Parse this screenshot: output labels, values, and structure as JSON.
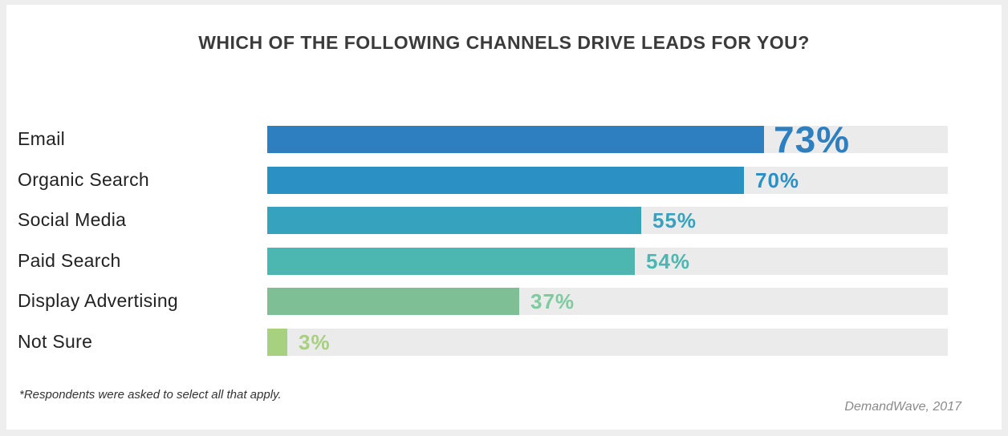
{
  "chart_data": {
    "type": "bar",
    "orientation": "horizontal",
    "title": "WHICH OF THE FOLLOWING CHANNELS DRIVE LEADS FOR YOU?",
    "categories": [
      "Email",
      "Organic Search",
      "Social Media",
      "Paid Search",
      "Display Advertising",
      "Not Sure"
    ],
    "values": [
      73,
      70,
      55,
      54,
      37,
      3
    ],
    "value_labels": [
      "73%",
      "70%",
      "55%",
      "54%",
      "37%",
      "3%"
    ],
    "xlim": [
      0,
      100
    ],
    "grid": false,
    "bar_colors": [
      "#2e7fc0",
      "#2b91c4",
      "#36a2bd",
      "#4bb7b0",
      "#7fbf95",
      "#a7d07f"
    ],
    "label_colors": [
      "#2e7fc0",
      "#2b91c4",
      "#36a2bd",
      "#4bb7b0",
      "#7ecb9f",
      "#a7d07f"
    ],
    "track_color": "#ebebeb"
  },
  "footnote": "*Respondents were asked to select all that apply.",
  "source": "DemandWave, 2017"
}
